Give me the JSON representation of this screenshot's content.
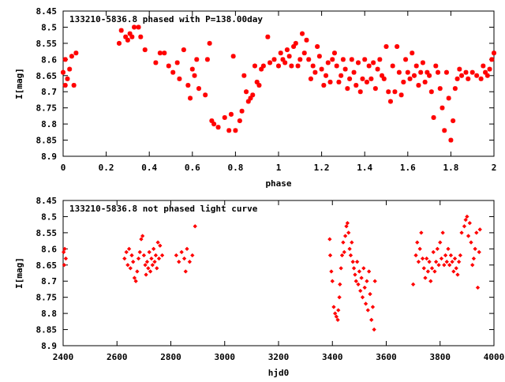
{
  "chart_data": [
    {
      "type": "scatter",
      "title": "133210-5836.8 phased with P=138.00day",
      "xlabel": "phase",
      "ylabel": "I[mag]",
      "xlim": [
        0,
        2
      ],
      "ylim": [
        8.45,
        8.9
      ],
      "y_inverted": true,
      "xticks": [
        "0",
        "0.2",
        "0.4",
        "0.6",
        "0.8",
        "1",
        "1.2",
        "1.4",
        "1.6",
        "1.8",
        "2"
      ],
      "yticks": [
        "8.45",
        "8.5",
        "8.55",
        "8.6",
        "8.65",
        "8.7",
        "8.75",
        "8.8",
        "8.85",
        "8.9"
      ],
      "marker_color": "#ff0000",
      "points": [
        [
          0.0,
          8.64
        ],
        [
          0.01,
          8.68
        ],
        [
          0.01,
          8.6
        ],
        [
          0.02,
          8.66
        ],
        [
          0.03,
          8.63
        ],
        [
          0.04,
          8.59
        ],
        [
          0.05,
          8.68
        ],
        [
          0.06,
          8.58
        ],
        [
          0.26,
          8.55
        ],
        [
          0.27,
          8.51
        ],
        [
          0.29,
          8.53
        ],
        [
          0.3,
          8.54
        ],
        [
          0.31,
          8.52
        ],
        [
          0.32,
          8.53
        ],
        [
          0.33,
          8.5
        ],
        [
          0.35,
          8.5
        ],
        [
          0.36,
          8.53
        ],
        [
          0.38,
          8.57
        ],
        [
          0.43,
          8.61
        ],
        [
          0.45,
          8.58
        ],
        [
          0.47,
          8.58
        ],
        [
          0.49,
          8.62
        ],
        [
          0.51,
          8.64
        ],
        [
          0.53,
          8.61
        ],
        [
          0.54,
          8.66
        ],
        [
          0.56,
          8.57
        ],
        [
          0.58,
          8.68
        ],
        [
          0.59,
          8.72
        ],
        [
          0.6,
          8.63
        ],
        [
          0.61,
          8.65
        ],
        [
          0.62,
          8.6
        ],
        [
          0.63,
          8.69
        ],
        [
          0.66,
          8.71
        ],
        [
          0.67,
          8.6
        ],
        [
          0.68,
          8.55
        ],
        [
          0.69,
          8.79
        ],
        [
          0.7,
          8.8
        ],
        [
          0.72,
          8.81
        ],
        [
          0.75,
          8.78
        ],
        [
          0.77,
          8.82
        ],
        [
          0.78,
          8.77
        ],
        [
          0.79,
          8.59
        ],
        [
          0.8,
          8.82
        ],
        [
          0.82,
          8.79
        ],
        [
          0.83,
          8.76
        ],
        [
          0.84,
          8.65
        ],
        [
          0.85,
          8.7
        ],
        [
          0.86,
          8.73
        ],
        [
          0.87,
          8.72
        ],
        [
          0.88,
          8.71
        ],
        [
          0.89,
          8.62
        ],
        [
          0.9,
          8.67
        ],
        [
          0.91,
          8.68
        ],
        [
          0.92,
          8.63
        ],
        [
          0.93,
          8.62
        ],
        [
          0.95,
          8.53
        ],
        [
          0.96,
          8.61
        ],
        [
          0.98,
          8.6
        ],
        [
          1.0,
          8.62
        ],
        [
          1.01,
          8.58
        ],
        [
          1.02,
          8.6
        ],
        [
          1.03,
          8.61
        ],
        [
          1.04,
          8.57
        ],
        [
          1.05,
          8.59
        ],
        [
          1.06,
          8.62
        ],
        [
          1.07,
          8.56
        ],
        [
          1.08,
          8.55
        ],
        [
          1.09,
          8.62
        ],
        [
          1.1,
          8.6
        ],
        [
          1.11,
          8.52
        ],
        [
          1.12,
          8.58
        ],
        [
          1.13,
          8.54
        ],
        [
          1.14,
          8.6
        ],
        [
          1.15,
          8.66
        ],
        [
          1.16,
          8.62
        ],
        [
          1.17,
          8.64
        ],
        [
          1.18,
          8.56
        ],
        [
          1.19,
          8.59
        ],
        [
          1.2,
          8.63
        ],
        [
          1.21,
          8.68
        ],
        [
          1.22,
          8.65
        ],
        [
          1.23,
          8.61
        ],
        [
          1.24,
          8.67
        ],
        [
          1.25,
          8.6
        ],
        [
          1.26,
          8.58
        ],
        [
          1.27,
          8.62
        ],
        [
          1.28,
          8.67
        ],
        [
          1.29,
          8.65
        ],
        [
          1.3,
          8.6
        ],
        [
          1.31,
          8.63
        ],
        [
          1.32,
          8.69
        ],
        [
          1.33,
          8.66
        ],
        [
          1.34,
          8.6
        ],
        [
          1.35,
          8.64
        ],
        [
          1.36,
          8.68
        ],
        [
          1.37,
          8.61
        ],
        [
          1.38,
          8.7
        ],
        [
          1.39,
          8.66
        ],
        [
          1.4,
          8.6
        ],
        [
          1.41,
          8.67
        ],
        [
          1.42,
          8.62
        ],
        [
          1.43,
          8.66
        ],
        [
          1.44,
          8.61
        ],
        [
          1.45,
          8.69
        ],
        [
          1.46,
          8.63
        ],
        [
          1.47,
          8.6
        ],
        [
          1.48,
          8.65
        ],
        [
          1.49,
          8.66
        ],
        [
          1.5,
          8.56
        ],
        [
          1.51,
          8.7
        ],
        [
          1.52,
          8.73
        ],
        [
          1.53,
          8.62
        ],
        [
          1.54,
          8.7
        ],
        [
          1.55,
          8.56
        ],
        [
          1.56,
          8.64
        ],
        [
          1.57,
          8.71
        ],
        [
          1.58,
          8.67
        ],
        [
          1.59,
          8.6
        ],
        [
          1.6,
          8.64
        ],
        [
          1.61,
          8.66
        ],
        [
          1.62,
          8.58
        ],
        [
          1.63,
          8.65
        ],
        [
          1.64,
          8.62
        ],
        [
          1.65,
          8.68
        ],
        [
          1.66,
          8.64
        ],
        [
          1.67,
          8.61
        ],
        [
          1.68,
          8.67
        ],
        [
          1.69,
          8.64
        ],
        [
          1.7,
          8.65
        ],
        [
          1.71,
          8.7
        ],
        [
          1.72,
          8.78
        ],
        [
          1.73,
          8.62
        ],
        [
          1.74,
          8.64
        ],
        [
          1.75,
          8.69
        ],
        [
          1.76,
          8.75
        ],
        [
          1.77,
          8.82
        ],
        [
          1.78,
          8.64
        ],
        [
          1.79,
          8.72
        ],
        [
          1.8,
          8.85
        ],
        [
          1.81,
          8.79
        ],
        [
          1.82,
          8.69
        ],
        [
          1.83,
          8.66
        ],
        [
          1.84,
          8.63
        ],
        [
          1.85,
          8.65
        ],
        [
          1.87,
          8.64
        ],
        [
          1.88,
          8.66
        ],
        [
          1.9,
          8.64
        ],
        [
          1.92,
          8.65
        ],
        [
          1.94,
          8.66
        ],
        [
          1.95,
          8.62
        ],
        [
          1.96,
          8.64
        ],
        [
          1.97,
          8.65
        ],
        [
          1.98,
          8.63
        ],
        [
          1.99,
          8.6
        ],
        [
          2.0,
          8.58
        ]
      ]
    },
    {
      "type": "scatter",
      "title": "133210-5836.8 not phased light curve",
      "xlabel": "hjd0",
      "ylabel": "I[mag]",
      "xlim": [
        2400,
        4000
      ],
      "ylim": [
        8.45,
        8.9
      ],
      "y_inverted": true,
      "xticks": [
        "2400",
        "2600",
        "2800",
        "3000",
        "3200",
        "3400",
        "3600",
        "3800",
        "4000"
      ],
      "yticks": [
        "8.45",
        "8.5",
        "8.55",
        "8.6",
        "8.65",
        "8.7",
        "8.75",
        "8.8",
        "8.85",
        "8.9"
      ],
      "marker_color": "#ff0000",
      "points": [
        [
          2402,
          8.61
        ],
        [
          2404,
          8.65
        ],
        [
          2406,
          8.6
        ],
        [
          2410,
          8.63
        ],
        [
          2628,
          8.63
        ],
        [
          2635,
          8.61
        ],
        [
          2640,
          8.65
        ],
        [
          2645,
          8.6
        ],
        [
          2650,
          8.66
        ],
        [
          2655,
          8.62
        ],
        [
          2660,
          8.64
        ],
        [
          2665,
          8.69
        ],
        [
          2670,
          8.7
        ],
        [
          2675,
          8.67
        ],
        [
          2680,
          8.63
        ],
        [
          2685,
          8.61
        ],
        [
          2690,
          8.57
        ],
        [
          2695,
          8.56
        ],
        [
          2700,
          8.62
        ],
        [
          2705,
          8.65
        ],
        [
          2708,
          8.68
        ],
        [
          2712,
          8.64
        ],
        [
          2716,
          8.66
        ],
        [
          2720,
          8.61
        ],
        [
          2724,
          8.67
        ],
        [
          2728,
          8.63
        ],
        [
          2732,
          8.65
        ],
        [
          2736,
          8.6
        ],
        [
          2740,
          8.64
        ],
        [
          2744,
          8.62
        ],
        [
          2748,
          8.66
        ],
        [
          2752,
          8.58
        ],
        [
          2756,
          8.63
        ],
        [
          2760,
          8.59
        ],
        [
          2768,
          8.62
        ],
        [
          2820,
          8.62
        ],
        [
          2830,
          8.64
        ],
        [
          2840,
          8.61
        ],
        [
          2850,
          8.63
        ],
        [
          2855,
          8.67
        ],
        [
          2860,
          8.6
        ],
        [
          2870,
          8.64
        ],
        [
          2880,
          8.62
        ],
        [
          2890,
          8.53
        ],
        [
          3390,
          8.57
        ],
        [
          3392,
          8.62
        ],
        [
          3396,
          8.67
        ],
        [
          3400,
          8.7
        ],
        [
          3405,
          8.78
        ],
        [
          3410,
          8.8
        ],
        [
          3415,
          8.81
        ],
        [
          3420,
          8.82
        ],
        [
          3422,
          8.79
        ],
        [
          3426,
          8.75
        ],
        [
          3428,
          8.71
        ],
        [
          3432,
          8.66
        ],
        [
          3436,
          8.62
        ],
        [
          3440,
          8.58
        ],
        [
          3444,
          8.61
        ],
        [
          3448,
          8.56
        ],
        [
          3452,
          8.53
        ],
        [
          3456,
          8.52
        ],
        [
          3460,
          8.55
        ],
        [
          3464,
          8.6
        ],
        [
          3468,
          8.62
        ],
        [
          3472,
          8.58
        ],
        [
          3476,
          8.64
        ],
        [
          3480,
          8.66
        ],
        [
          3484,
          8.68
        ],
        [
          3488,
          8.7
        ],
        [
          3492,
          8.64
        ],
        [
          3496,
          8.71
        ],
        [
          3500,
          8.67
        ],
        [
          3504,
          8.73
        ],
        [
          3508,
          8.69
        ],
        [
          3512,
          8.75
        ],
        [
          3516,
          8.66
        ],
        [
          3520,
          8.72
        ],
        [
          3524,
          8.77
        ],
        [
          3528,
          8.7
        ],
        [
          3532,
          8.79
        ],
        [
          3536,
          8.67
        ],
        [
          3540,
          8.74
        ],
        [
          3545,
          8.82
        ],
        [
          3550,
          8.78
        ],
        [
          3555,
          8.85
        ],
        [
          3558,
          8.7
        ],
        [
          3700,
          8.71
        ],
        [
          3710,
          8.62
        ],
        [
          3715,
          8.58
        ],
        [
          3720,
          8.64
        ],
        [
          3725,
          8.6
        ],
        [
          3730,
          8.55
        ],
        [
          3735,
          8.63
        ],
        [
          3740,
          8.66
        ],
        [
          3745,
          8.69
        ],
        [
          3750,
          8.63
        ],
        [
          3755,
          8.67
        ],
        [
          3760,
          8.64
        ],
        [
          3765,
          8.7
        ],
        [
          3770,
          8.66
        ],
        [
          3775,
          8.61
        ],
        [
          3780,
          8.67
        ],
        [
          3785,
          8.64
        ],
        [
          3790,
          8.6
        ],
        [
          3795,
          8.65
        ],
        [
          3800,
          8.58
        ],
        [
          3805,
          8.63
        ],
        [
          3810,
          8.55
        ],
        [
          3815,
          8.65
        ],
        [
          3820,
          8.62
        ],
        [
          3825,
          8.64
        ],
        [
          3830,
          8.6
        ],
        [
          3835,
          8.65
        ],
        [
          3840,
          8.62
        ],
        [
          3845,
          8.64
        ],
        [
          3850,
          8.67
        ],
        [
          3855,
          8.63
        ],
        [
          3860,
          8.66
        ],
        [
          3865,
          8.68
        ],
        [
          3870,
          8.64
        ],
        [
          3875,
          8.62
        ],
        [
          3880,
          8.55
        ],
        [
          3890,
          8.53
        ],
        [
          3895,
          8.51
        ],
        [
          3900,
          8.5
        ],
        [
          3905,
          8.56
        ],
        [
          3910,
          8.52
        ],
        [
          3915,
          8.58
        ],
        [
          3920,
          8.65
        ],
        [
          3925,
          8.63
        ],
        [
          3930,
          8.6
        ],
        [
          3935,
          8.55
        ],
        [
          3940,
          8.72
        ],
        [
          3945,
          8.61
        ],
        [
          3948,
          8.54
        ]
      ]
    }
  ]
}
